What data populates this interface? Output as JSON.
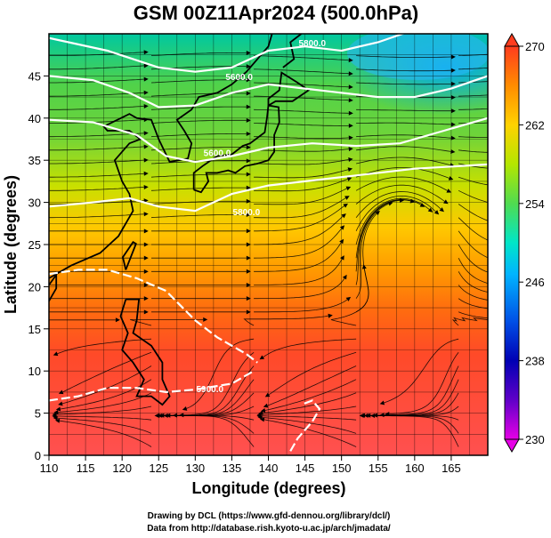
{
  "title": "GSM 00Z11Apr2024 (500.0hPa)",
  "xlabel": "Longitude (degrees)",
  "ylabel": "Latitude  (degrees)",
  "credit_line1": "Drawing by DCL (https://www.gfd-dennou.org/library/dcl/)",
  "credit_line2": "Data from http://database.rish.kyoto-u.ac.jp/arch/jmadata/",
  "map_data": {
    "type": "heatmap",
    "xlim": [
      110,
      170
    ],
    "ylim": [
      0,
      50
    ],
    "x_ticks": [
      110,
      115,
      120,
      125,
      130,
      135,
      140,
      145,
      150,
      155,
      160,
      165
    ],
    "y_ticks": [
      0,
      5,
      10,
      15,
      20,
      25,
      30,
      35,
      40,
      45
    ],
    "colorbar": {
      "min": 230,
      "max": 270,
      "ticks": [
        230,
        238,
        246,
        254,
        262,
        270
      ],
      "colors": [
        "#e600e6",
        "#0000b4",
        "#0050e6",
        "#00b4ff",
        "#00e6c8",
        "#50dc50",
        "#b4e600",
        "#ffd200",
        "#ff8c00",
        "#ff3c1e",
        "#ff5050"
      ]
    },
    "contour_labels": [
      {
        "text": "5800.0",
        "lon": 146,
        "lat": 48.5
      },
      {
        "text": "5600.0",
        "lon": 136,
        "lat": 44.5
      },
      {
        "text": "5600.0",
        "lon": 133,
        "lat": 35.5
      },
      {
        "text": "5800.0",
        "lon": 137,
        "lat": 28.5
      },
      {
        "text": "5900.0",
        "lon": 132,
        "lat": 7.5
      }
    ]
  }
}
